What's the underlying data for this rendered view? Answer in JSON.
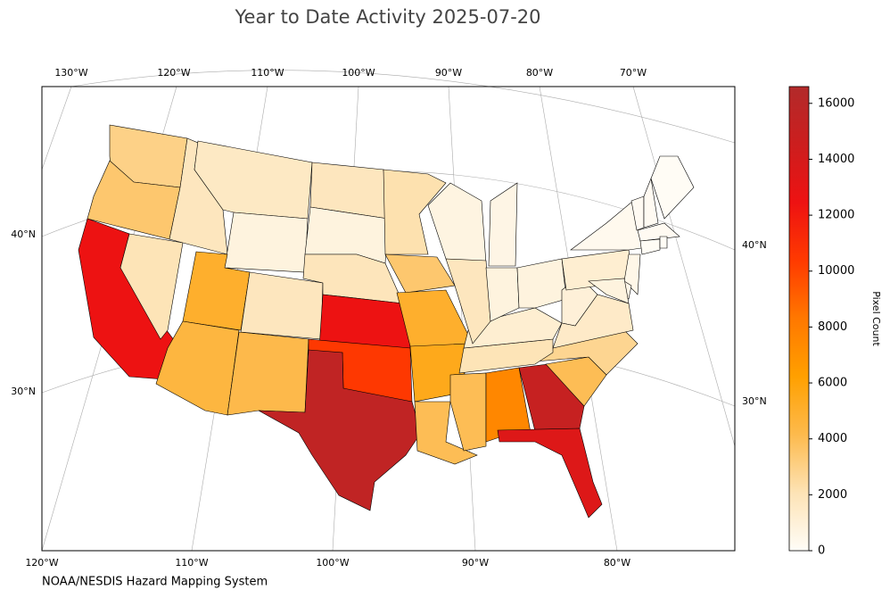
{
  "chart_data": {
    "type": "choropleth",
    "title": "Year to Date Activity 2025-07-20",
    "credit": "NOAA/NESDIS Hazard Mapping System",
    "colorbar_label": "Pixel Count",
    "zlim": [
      0,
      16600
    ],
    "zticks": [
      0,
      2000,
      4000,
      6000,
      8000,
      10000,
      12000,
      14000,
      16000
    ],
    "colorscale": [
      "#fffdf8",
      "#fde3b5",
      "#fdba4d",
      "#ffa000",
      "#ff7800",
      "#ff3a00",
      "#ee1212",
      "#cc1e1e",
      "#b22a2a"
    ],
    "top_lon_labels": [
      "130°W",
      "120°W",
      "110°W",
      "100°W",
      "90°W",
      "80°W",
      "70°W"
    ],
    "bottom_lon_labels": [
      "120°W",
      "110°W",
      "100°W",
      "90°W",
      "80°W"
    ],
    "left_lat_labels": [
      "40°N",
      "30°N"
    ],
    "right_lat_labels": [
      "40°N",
      "30°N"
    ],
    "values": [
      3000,
      3500,
      12500,
      2000,
      1800,
      1600,
      800,
      5000,
      4500,
      1800,
      4200,
      1800,
      800,
      1900,
      12500,
      10500,
      15500,
      2200,
      3500,
      5000,
      5500,
      4000,
      4000,
      7500,
      15000,
      13500,
      4000,
      2800,
      2000,
      1200,
      700,
      1800,
      800,
      600,
      800,
      1000,
      1500,
      1200,
      300,
      200,
      200,
      100,
      200,
      100,
      100,
      500,
      500,
      800
    ]
  }
}
